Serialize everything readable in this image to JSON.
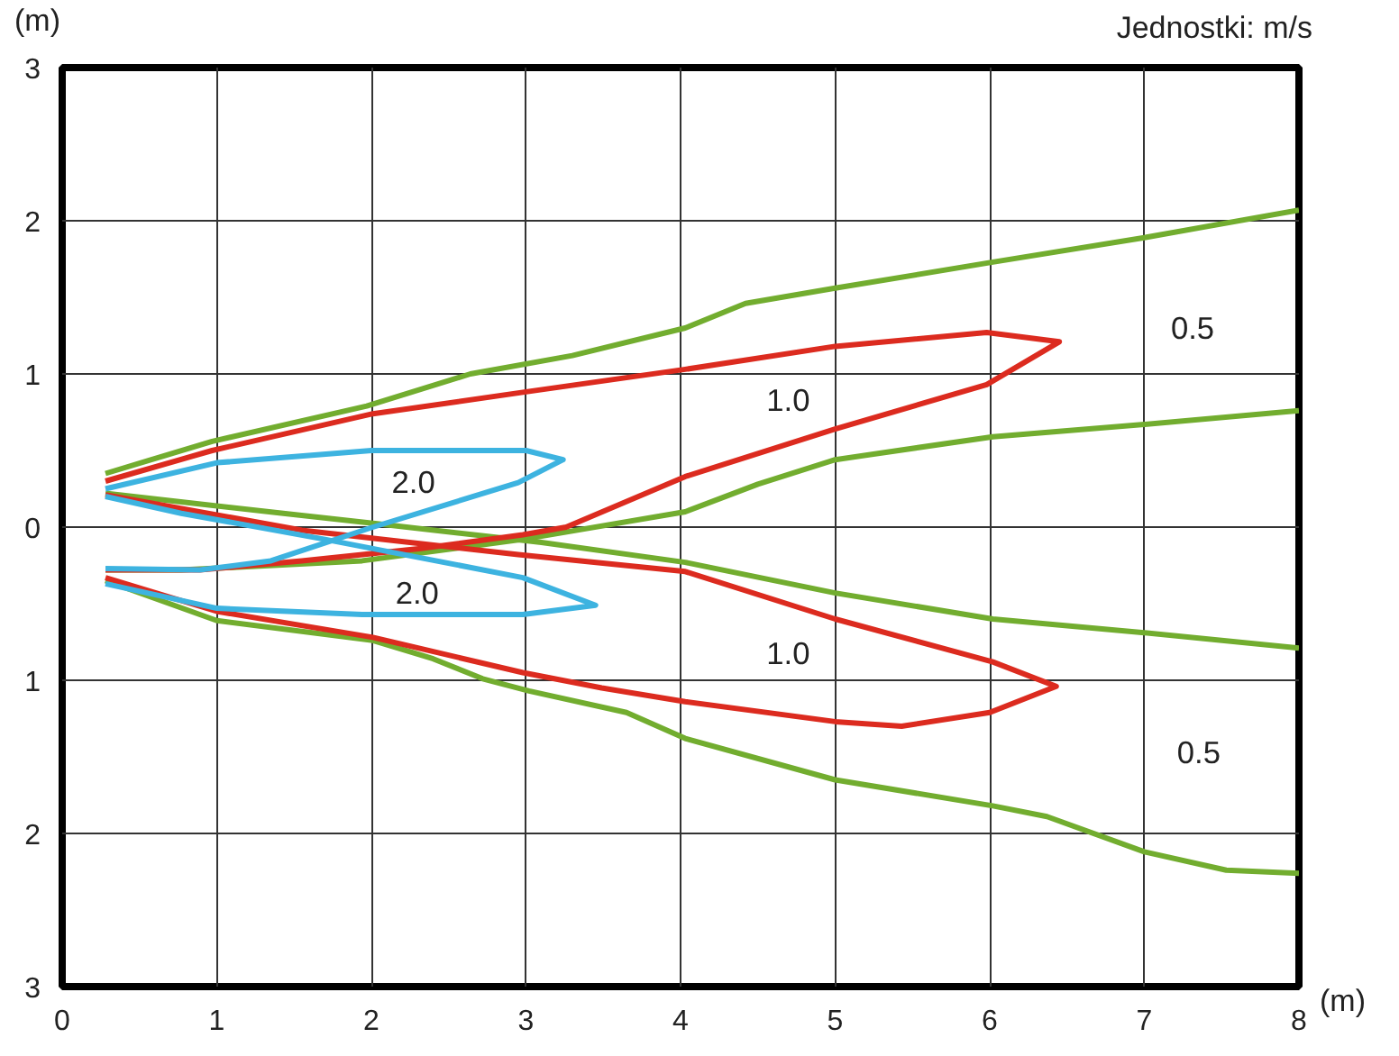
{
  "chart_data": {
    "type": "line",
    "xlabel": "(m)",
    "ylabel": "(m)",
    "annotations": [
      "Jednostki: m/s",
      "2.0",
      "2.0",
      "1.0",
      "1.0",
      "0.5",
      "0.5"
    ],
    "xlim": [
      0,
      8
    ],
    "ylim": [
      -3,
      3
    ],
    "xticks": [
      0,
      1,
      2,
      3,
      4,
      5,
      6,
      7,
      8
    ],
    "yticks": [
      {
        "value": -3,
        "label": "3"
      },
      {
        "value": -2,
        "label": "2"
      },
      {
        "value": -1,
        "label": "1"
      },
      0,
      1,
      2,
      3
    ],
    "grid": true,
    "series": [
      {
        "color": "#72ad2f",
        "x": [
          0.28,
          0.97,
          1.97,
          2.64,
          3.3,
          4.03,
          4.42,
          5,
          6.02,
          7,
          8
        ],
        "values": [
          0.35,
          0.56,
          0.79,
          1.0,
          1.12,
          1.3,
          1.46,
          1.56,
          1.73,
          1.89,
          2.07
        ]
      },
      {
        "color": "#72ad2f",
        "x": [
          0.28,
          0.77,
          1.94,
          2.98,
          4.03,
          4.5,
          5,
          6.02,
          7,
          8
        ],
        "values": [
          -0.28,
          -0.28,
          -0.22,
          -0.08,
          0.1,
          0.28,
          0.44,
          0.59,
          0.67,
          0.76
        ]
      },
      {
        "color": "#72ad2f",
        "x": [
          0.28,
          1.43,
          2.05,
          3.1,
          4.03,
          5,
          6.02,
          7,
          8
        ],
        "values": [
          0.22,
          0.09,
          0.02,
          -0.1,
          -0.23,
          -0.43,
          -0.6,
          -0.69,
          -0.79
        ]
      },
      {
        "color": "#72ad2f",
        "x": [
          0.28,
          1,
          2.01,
          2.4,
          2.72,
          3.02,
          3.65,
          4.03,
          5,
          6.02,
          6.37,
          7,
          7.53,
          8
        ],
        "values": [
          -0.35,
          -0.61,
          -0.74,
          -0.86,
          -0.99,
          -1.07,
          -1.21,
          -1.38,
          -1.65,
          -1.82,
          -1.89,
          -2.12,
          -2.24,
          -2.26
        ]
      },
      {
        "color": "#dc2b1f",
        "x": [
          0.28,
          0.97,
          2.01,
          2.98,
          4.03,
          5,
          5.98,
          6.45,
          5.98,
          5,
          4.03,
          3.26,
          2.98,
          2.32,
          1.55,
          0.89,
          0.28
        ],
        "values": [
          0.3,
          0.5,
          0.74,
          0.88,
          1.03,
          1.18,
          1.27,
          1.21,
          0.93,
          0.64,
          0.33,
          0.0,
          -0.05,
          -0.14,
          -0.22,
          -0.28,
          -0.28
        ]
      },
      {
        "color": "#dc2b1f",
        "x": [
          0.28,
          1.55,
          2.95,
          4.03,
          5,
          6.02,
          6.43,
          6,
          5.43,
          5,
          4.03,
          3.49,
          2.98,
          2.01,
          1.0,
          0.28
        ],
        "values": [
          0.21,
          -0.02,
          -0.18,
          -0.29,
          -0.6,
          -0.88,
          -1.04,
          -1.21,
          -1.3,
          -1.27,
          -1.14,
          -1.05,
          -0.95,
          -0.72,
          -0.55,
          -0.33
        ]
      },
      {
        "color": "#3db3e0",
        "x": [
          0.28,
          1,
          2,
          3,
          3.24,
          2.95,
          2.01,
          1.35,
          0.89,
          0.28
        ],
        "values": [
          0.25,
          0.42,
          0.5,
          0.5,
          0.44,
          0.29,
          0.0,
          -0.22,
          -0.28,
          -0.27
        ]
      },
      {
        "color": "#3db3e0",
        "x": [
          0.28,
          0.77,
          1.7,
          2.98,
          3.45,
          2.98,
          1.94,
          1.0,
          0.28
        ],
        "values": [
          0.2,
          0.09,
          -0.08,
          -0.33,
          -0.51,
          -0.57,
          -0.57,
          -0.53,
          -0.37
        ]
      }
    ]
  }
}
